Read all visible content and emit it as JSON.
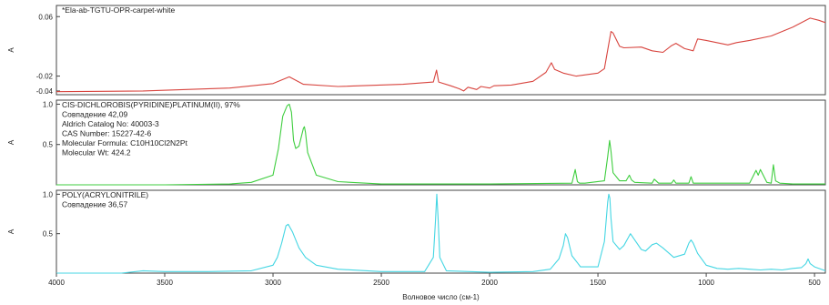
{
  "chart_data": {
    "type": "line",
    "xlabel": "Волновое число (см-1)",
    "xlim": [
      4000,
      450
    ],
    "x_ticks": [
      "4000",
      "3500",
      "3000",
      "2500",
      "2000",
      "1500",
      "1000",
      "500"
    ],
    "panels": [
      {
        "ylabel": "A",
        "ylim": [
          -0.045,
          0.075
        ],
        "y_ticks": [
          {
            "value": 0.06,
            "label": "0.06"
          },
          {
            "value": -0.02,
            "label": "-0.02"
          },
          {
            "value": -0.04,
            "label": "-0.04"
          }
        ],
        "info": [
          "*Ela-ab-TGTU-OPR-carpet-white"
        ],
        "color": "#d8453f",
        "series": [
          {
            "x": [
              4000,
              3600,
              3200,
              3000,
              2925,
              2860,
              2700,
              2400,
              2260,
              2245,
              2235,
              2180,
              2140,
              2120,
              2100,
              2060,
              2040,
              2000,
              1980,
              1900,
              1800,
              1740,
              1715,
              1700,
              1660,
              1600,
              1500,
              1470,
              1440,
              1430,
              1400,
              1380,
              1300,
              1250,
              1200,
              1160,
              1140,
              1100,
              1060,
              1040,
              1000,
              900,
              860,
              800,
              700,
              600,
              520,
              480,
              450
            ],
            "y": [
              -0.041,
              -0.04,
              -0.036,
              -0.03,
              -0.021,
              -0.031,
              -0.034,
              -0.031,
              -0.028,
              -0.012,
              -0.028,
              -0.033,
              -0.037,
              -0.04,
              -0.035,
              -0.038,
              -0.034,
              -0.036,
              -0.033,
              -0.032,
              -0.027,
              -0.015,
              -0.002,
              -0.011,
              -0.016,
              -0.02,
              -0.016,
              -0.01,
              0.04,
              0.038,
              0.02,
              0.018,
              0.019,
              0.014,
              0.012,
              0.021,
              0.024,
              0.017,
              0.014,
              0.03,
              0.028,
              0.022,
              0.025,
              0.028,
              0.034,
              0.046,
              0.058,
              0.055,
              0.052
            ]
          }
        ]
      },
      {
        "ylabel": "A",
        "ylim": [
          0,
          1.05
        ],
        "y_ticks": [
          {
            "value": 1.0,
            "label": "1.0"
          },
          {
            "value": 0.5,
            "label": "0.5"
          }
        ],
        "info": [
          "CIS-DICHLOROBIS(PYRIDINE)PLATINUM(II), 97%",
          "Совпадение 42,09",
          "Aldrich Catalog No:  40003-3",
          "CAS Number:  15227-42-6",
          "Molecular Formula:  C10H10Cl2N2Pt",
          "Molecular Wt:  424.2"
        ],
        "color": "#3fce3f",
        "series": [
          {
            "x": [
              4000,
              3500,
              3200,
              3100,
              3000,
              2975,
              2955,
              2935,
              2925,
              2915,
              2905,
              2895,
              2880,
              2860,
              2855,
              2850,
              2840,
              2800,
              2700,
              2500,
              2000,
              1620,
              1605,
              1595,
              1585,
              1560,
              1470,
              1455,
              1446,
              1440,
              1430,
              1400,
              1370,
              1355,
              1345,
              1330,
              1250,
              1240,
              1220,
              1210,
              1160,
              1150,
              1140,
              1080,
              1070,
              1060,
              900,
              800,
              770,
              760,
              750,
              720,
              700,
              690,
              680,
              660,
              600,
              450
            ],
            "y": [
              0,
              0,
              0.01,
              0.03,
              0.12,
              0.45,
              0.85,
              0.98,
              1.0,
              0.9,
              0.55,
              0.45,
              0.48,
              0.7,
              0.72,
              0.65,
              0.4,
              0.12,
              0.04,
              0.01,
              0.01,
              0.02,
              0.19,
              0.04,
              0.02,
              0.02,
              0.05,
              0.35,
              0.55,
              0.42,
              0.15,
              0.05,
              0.05,
              0.12,
              0.06,
              0.03,
              0.02,
              0.07,
              0.02,
              0.02,
              0.02,
              0.06,
              0.02,
              0.02,
              0.1,
              0.02,
              0.02,
              0.02,
              0.18,
              0.12,
              0.19,
              0.03,
              0.02,
              0.25,
              0.05,
              0.02,
              0.01,
              0.01
            ]
          }
        ]
      },
      {
        "ylabel": "A",
        "ylim": [
          0,
          1.05
        ],
        "y_ticks": [
          {
            "value": 1.0,
            "label": "1.0"
          },
          {
            "value": 0.5,
            "label": "0.5"
          }
        ],
        "info": [
          "POLY(ACRYLONITRILE)",
          "Совпадение 36,57"
        ],
        "color": "#45d6e3",
        "series": [
          {
            "x": [
              4000,
              3700,
              3600,
              3500,
              3300,
              3100,
              3000,
              2980,
              2960,
              2940,
              2930,
              2910,
              2880,
              2850,
              2800,
              2700,
              2500,
              2300,
              2260,
              2250,
              2244,
              2238,
              2230,
              2200,
              2000,
              1800,
              1720,
              1680,
              1660,
              1650,
              1640,
              1620,
              1580,
              1500,
              1470,
              1455,
              1450,
              1445,
              1440,
              1430,
              1400,
              1380,
              1360,
              1350,
              1330,
              1300,
              1280,
              1250,
              1230,
              1200,
              1150,
              1100,
              1080,
              1070,
              1060,
              1040,
              1000,
              950,
              900,
              850,
              800,
              750,
              700,
              650,
              600,
              560,
              540,
              530,
              520,
              500,
              460,
              450
            ],
            "y": [
              0,
              0,
              0.03,
              0.02,
              0.02,
              0.03,
              0.1,
              0.2,
              0.38,
              0.6,
              0.62,
              0.52,
              0.32,
              0.2,
              0.1,
              0.05,
              0.02,
              0.02,
              0.2,
              0.65,
              1.0,
              0.7,
              0.2,
              0.03,
              0.01,
              0.02,
              0.05,
              0.18,
              0.35,
              0.5,
              0.45,
              0.22,
              0.08,
              0.08,
              0.4,
              0.9,
              1.0,
              0.95,
              0.7,
              0.4,
              0.3,
              0.35,
              0.45,
              0.5,
              0.42,
              0.3,
              0.28,
              0.36,
              0.38,
              0.32,
              0.2,
              0.24,
              0.38,
              0.42,
              0.38,
              0.25,
              0.1,
              0.06,
              0.05,
              0.06,
              0.05,
              0.04,
              0.05,
              0.04,
              0.06,
              0.07,
              0.12,
              0.18,
              0.12,
              0.08,
              0.04,
              0.03
            ]
          }
        ]
      }
    ]
  }
}
